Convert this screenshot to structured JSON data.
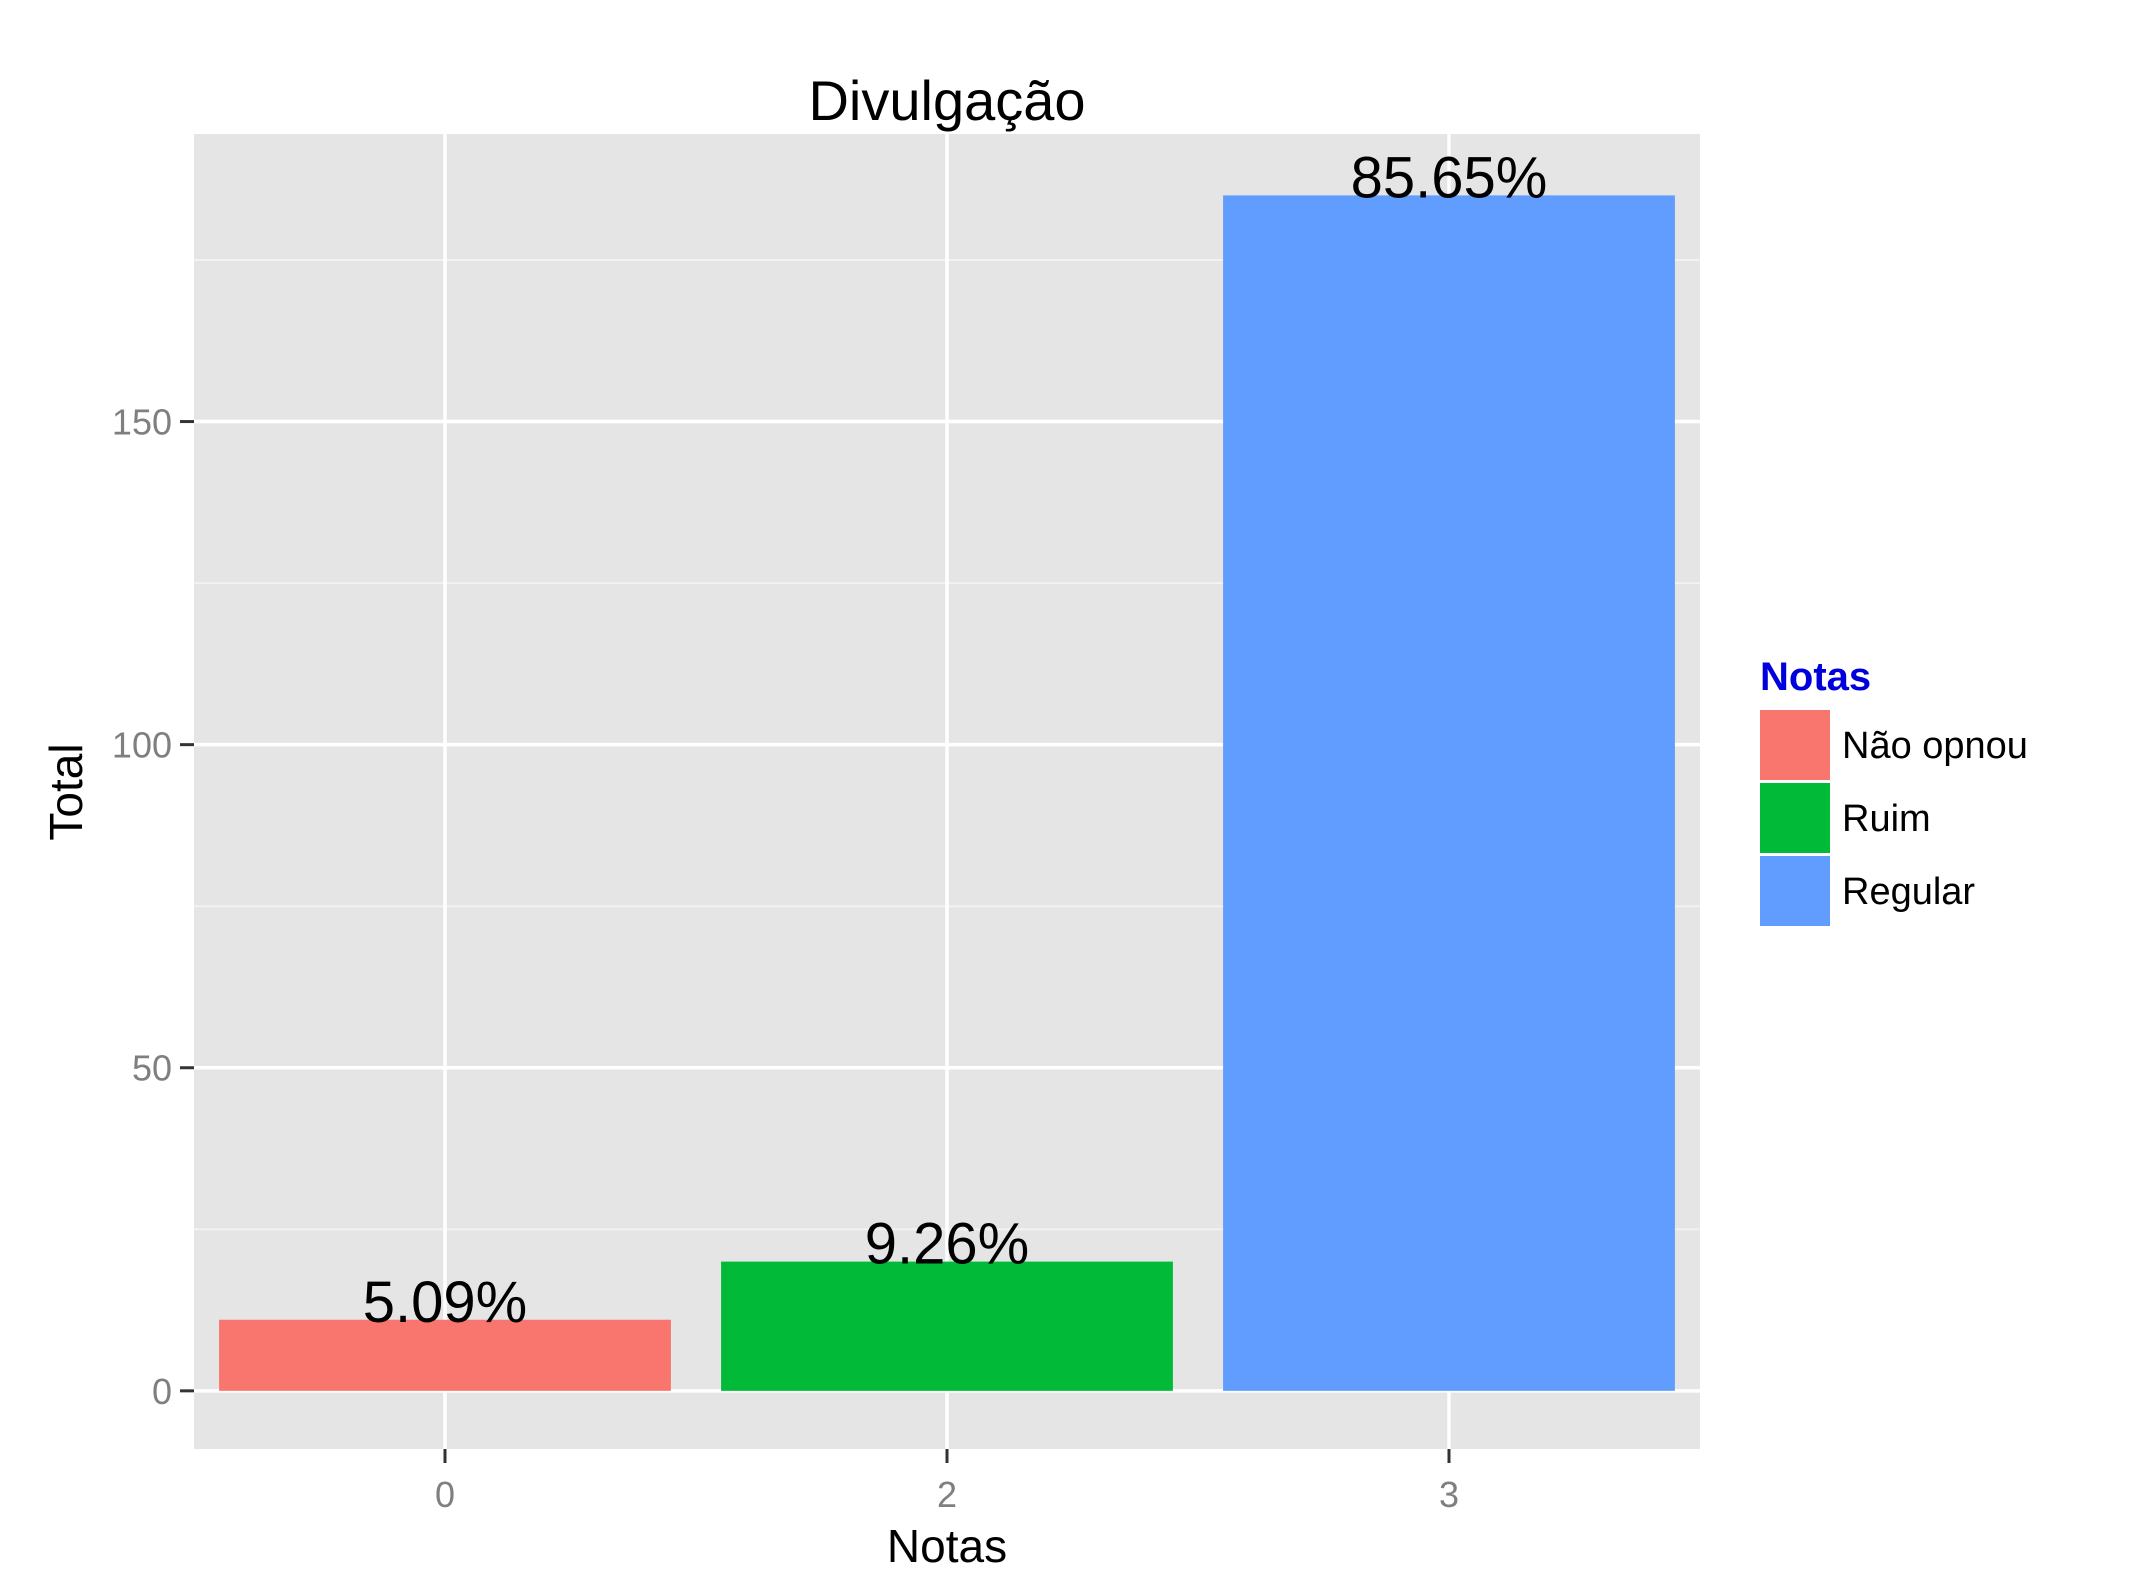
{
  "chart_data": {
    "type": "bar",
    "title": "Divulgação",
    "xlabel": "Notas",
    "ylabel": "Total",
    "categories": [
      "0",
      "2",
      "3"
    ],
    "values": [
      11,
      20,
      185
    ],
    "data_labels": [
      "5.09%",
      "9.26%",
      "85.65%"
    ],
    "series_names": [
      "Não opnou",
      "Ruim",
      "Regular"
    ],
    "colors": [
      "#F8766D",
      "#00BA38",
      "#619CFF"
    ],
    "ylim": [
      -9,
      194.5
    ],
    "yticks": [
      0,
      50,
      100,
      150
    ],
    "ytick_labels": [
      "0",
      "50",
      "100",
      "150"
    ],
    "grid": true,
    "legend": {
      "title": "Notas",
      "title_color": "#0000DD",
      "position": "right",
      "entries": [
        "Não opnou",
        "Ruim",
        "Regular"
      ]
    }
  }
}
